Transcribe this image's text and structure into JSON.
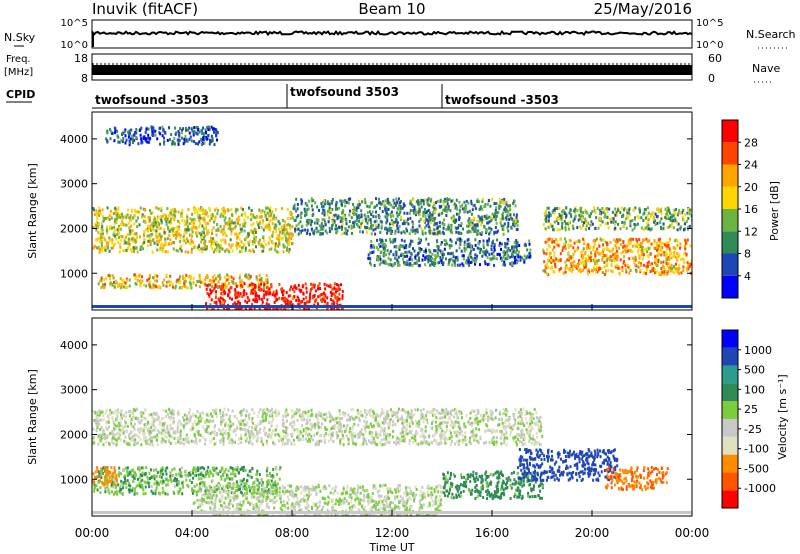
{
  "header": {
    "station": "Inuvik (fitACF)",
    "beam": "Beam 10",
    "date": "25/May/2016"
  },
  "panels": {
    "nsky": {
      "left_label": "N.Sky",
      "left_ticks": [
        "10^5",
        "10^0"
      ],
      "right_ticks": [
        "10^5",
        "10^0"
      ],
      "right_label": "N.Search"
    },
    "freq": {
      "left_label_1": "Freq.",
      "left_label_2": "[MHz]",
      "left_ticks": [
        "18",
        "8"
      ],
      "right_ticks": [
        "60",
        "0"
      ],
      "right_label": "Nave"
    },
    "cpid": {
      "label": "CPID",
      "segments": [
        {
          "name": "twofsound -3503",
          "start": 0.0,
          "end": 7.8
        },
        {
          "name": "twofsound 3503",
          "start": 7.8,
          "end": 14.0
        },
        {
          "name": "twofsound -3503",
          "start": 14.0,
          "end": 24.0
        }
      ]
    },
    "power": {
      "ylabel": "Slant Range [km]",
      "cbar_label": "Power [dB]",
      "cbar_ticks": [
        "28",
        "24",
        "20",
        "16",
        "12",
        "8",
        "4"
      ]
    },
    "velocity": {
      "ylabel": "Slant Range [km]",
      "cbar_label": "Velocity [m s⁻¹]",
      "cbar_ticks": [
        "1000",
        "500",
        "100",
        "25",
        "-25",
        "-100",
        "-500",
        "-1000"
      ]
    }
  },
  "x_axis": {
    "label": "Time UT",
    "ticks": [
      "00:00",
      "04:00",
      "08:00",
      "12:00",
      "16:00",
      "20:00",
      "00:00"
    ]
  },
  "colors": {
    "power_scale": [
      "#0000ff",
      "#1e46b4",
      "#2e8b57",
      "#6cb442",
      "#ffd700",
      "#ffa500",
      "#ff4500",
      "#ff0000"
    ],
    "velocity_scale": [
      "#ff0000",
      "#ff5500",
      "#ff8c00",
      "#e0e0c0",
      "#c8c8c8",
      "#7ccd3c",
      "#2e8b57",
      "#2a9d8f",
      "#1e46b4",
      "#0000ff"
    ]
  },
  "chart_data": [
    {
      "type": "heatmap",
      "title": "Power",
      "xlabel": "Time UT",
      "ylabel": "Slant Range [km]",
      "xlim": [
        0,
        24
      ],
      "ylim": [
        180,
        4600
      ],
      "colorbar": "Power [dB]",
      "colorbar_range": [
        0,
        30
      ],
      "regions": [
        {
          "t0": 0.0,
          "t1": 8.0,
          "r0": 1500,
          "r1": 2500,
          "value": 16
        },
        {
          "t0": 0.2,
          "t1": 7.0,
          "r0": 700,
          "r1": 1000,
          "value": 18
        },
        {
          "t0": 4.5,
          "t1": 10.0,
          "r0": 200,
          "r1": 800,
          "value": 28
        },
        {
          "t0": 8.0,
          "t1": 17.0,
          "r0": 1900,
          "r1": 2700,
          "value": 10
        },
        {
          "t0": 11.0,
          "t1": 17.5,
          "r0": 1200,
          "r1": 1800,
          "value": 8
        },
        {
          "t0": 18.0,
          "t1": 24.0,
          "r0": 1000,
          "r1": 1800,
          "value": 20
        },
        {
          "t0": 18.0,
          "t1": 24.0,
          "r0": 2000,
          "r1": 2500,
          "value": 12
        },
        {
          "t0": 0.5,
          "t1": 5.0,
          "r0": 3900,
          "r1": 4300,
          "value": 6
        }
      ]
    },
    {
      "type": "heatmap",
      "title": "Velocity",
      "xlabel": "Time UT",
      "ylabel": "Slant Range [km]",
      "xlim": [
        0,
        24
      ],
      "ylim": [
        180,
        4600
      ],
      "colorbar": "Velocity [m s⁻¹]",
      "colorbar_range": [
        -1000,
        1000
      ],
      "regions": [
        {
          "t0": 0.0,
          "t1": 18.0,
          "r0": 1800,
          "r1": 2600,
          "value": 0
        },
        {
          "t0": 0.0,
          "t1": 7.5,
          "r0": 700,
          "r1": 1300,
          "value": 80
        },
        {
          "t0": 4.0,
          "t1": 14.0,
          "r0": 200,
          "r1": 900,
          "value": 10
        },
        {
          "t0": 14.0,
          "t1": 18.0,
          "r0": 600,
          "r1": 1200,
          "value": 150
        },
        {
          "t0": 17.0,
          "t1": 21.0,
          "r0": 1000,
          "r1": 1700,
          "value": 700
        },
        {
          "t0": 20.5,
          "t1": 23.0,
          "r0": 800,
          "r1": 1300,
          "value": -300
        },
        {
          "t0": 0.0,
          "t1": 1.0,
          "r0": 900,
          "r1": 1300,
          "value": -200
        }
      ]
    }
  ]
}
